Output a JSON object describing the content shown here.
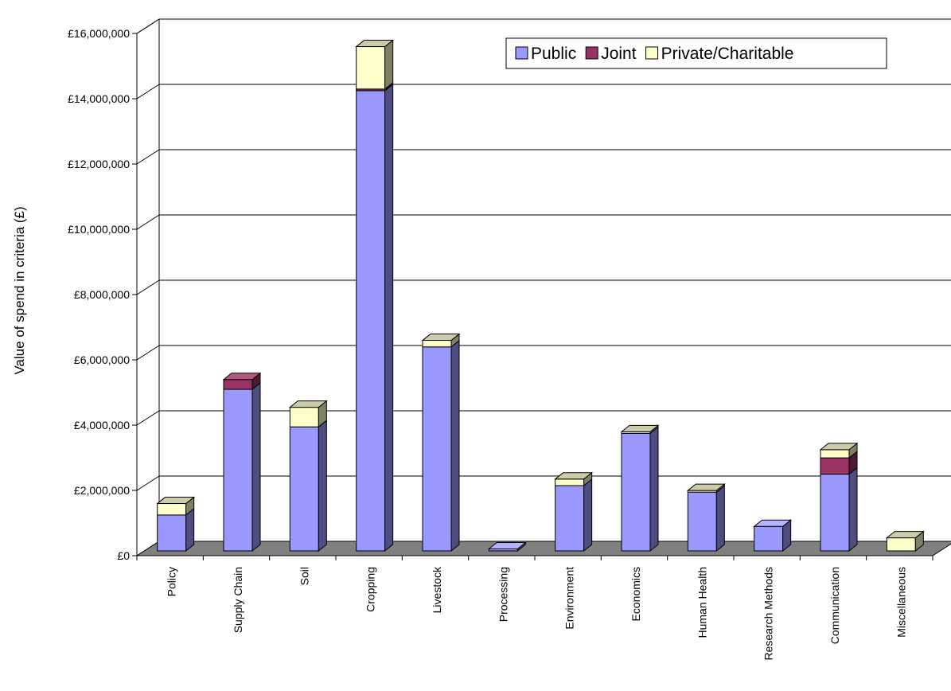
{
  "chart_data": {
    "type": "bar",
    "stacked": true,
    "three_d": true,
    "title": "",
    "xlabel": "",
    "ylabel": "Value of spend in criteria (£)",
    "ylim": [
      0,
      16000000
    ],
    "ytick_labels": [
      "£0",
      "£2,000,000",
      "£4,000,000",
      "£6,000,000",
      "£8,000,000",
      "£10,000,000",
      "£12,000,000",
      "£14,000,000",
      "£16,000,000"
    ],
    "grid": true,
    "legend_position": "top-right",
    "categories": [
      "Policy",
      "Supply Chain",
      "Soil",
      "Cropping",
      "Livestock",
      "Processing",
      "Environment",
      "Economics",
      "Human Health",
      "Research Methods",
      "Communication",
      "Miscellaneous"
    ],
    "series": [
      {
        "name": "Public",
        "color": "#9999ff",
        "values": [
          1100000,
          4950000,
          3800000,
          14100000,
          6250000,
          60000,
          2000000,
          3600000,
          1800000,
          750000,
          2350000,
          0
        ]
      },
      {
        "name": "Joint",
        "color": "#993366",
        "values": [
          0,
          300000,
          0,
          50000,
          0,
          0,
          0,
          0,
          0,
          0,
          500000,
          0
        ]
      },
      {
        "name": "Private/Charitable",
        "color": "#ffffcc",
        "values": [
          350000,
          0,
          600000,
          1300000,
          200000,
          0,
          200000,
          50000,
          50000,
          0,
          250000,
          400000
        ]
      }
    ]
  }
}
